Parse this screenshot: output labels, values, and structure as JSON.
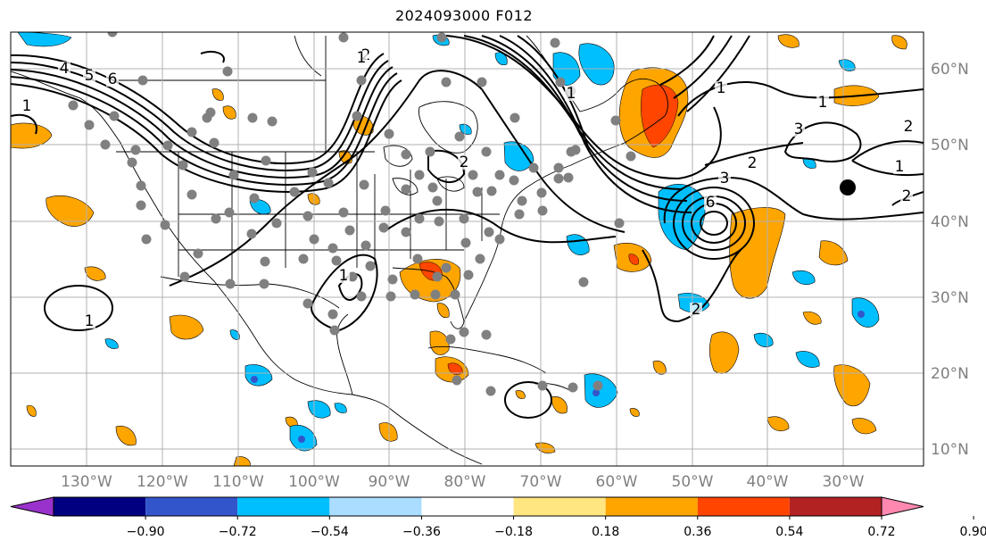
{
  "title": "2024093000 F012",
  "map": {
    "lat_labels": [
      "60°N",
      "50°N",
      "40°N",
      "30°N",
      "20°N",
      "10°N"
    ],
    "lon_labels": [
      "130°W",
      "120°W",
      "110°W",
      "100°W",
      "90°W",
      "80°W",
      "70°W",
      "60°W",
      "50°W",
      "40°W",
      "30°W"
    ],
    "contour_labels": [
      "4",
      "5",
      "6",
      "1",
      "2",
      "1",
      "2",
      "1",
      "2",
      "3",
      "6",
      "1",
      "2",
      "1",
      "2",
      "3",
      "2",
      "1",
      "1",
      "1"
    ]
  },
  "colorbar": {
    "tick_labels": [
      "−0.90",
      "−0.72",
      "−0.54",
      "−0.36",
      "−0.18",
      "0.18",
      "0.36",
      "0.54",
      "0.72",
      "0.90"
    ],
    "colors": [
      "#9932cc",
      "#000080",
      "#3355cc",
      "#00bfff",
      "#aaddff",
      "#ffffff",
      "#ffe680",
      "#ffa500",
      "#ff4500",
      "#b22222",
      "#ff88b0"
    ]
  },
  "colors": {
    "orange": "#ffa500",
    "red_orange": "#ff4500",
    "sky_blue": "#00bfff",
    "royal_blue": "#3355cc",
    "station_gray": "#808080",
    "grid": "#b0b0b0"
  }
}
